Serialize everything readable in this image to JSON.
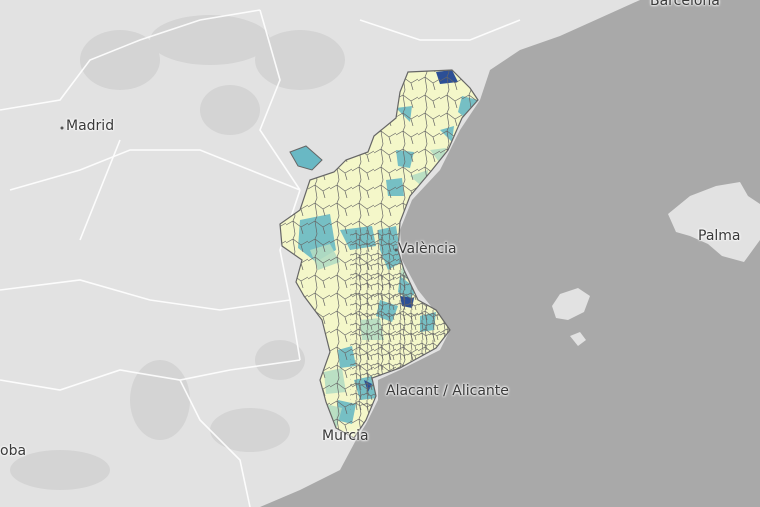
{
  "map": {
    "labels": {
      "barcelona": "Barcelona",
      "madrid": "Madrid",
      "valencia": "València",
      "palma": "Palma",
      "alicante": "Alacant / Alicante",
      "murcia": "Murcia",
      "cordoba": "oba"
    },
    "colors": {
      "sea": "#a9a9a9",
      "land": "#e2e2e2",
      "region_light": "#f4f7c9",
      "region_teal": "#69b8c4",
      "region_mint": "#b4dcc2",
      "region_dark": "#2c4f96",
      "border": "#666666"
    }
  }
}
